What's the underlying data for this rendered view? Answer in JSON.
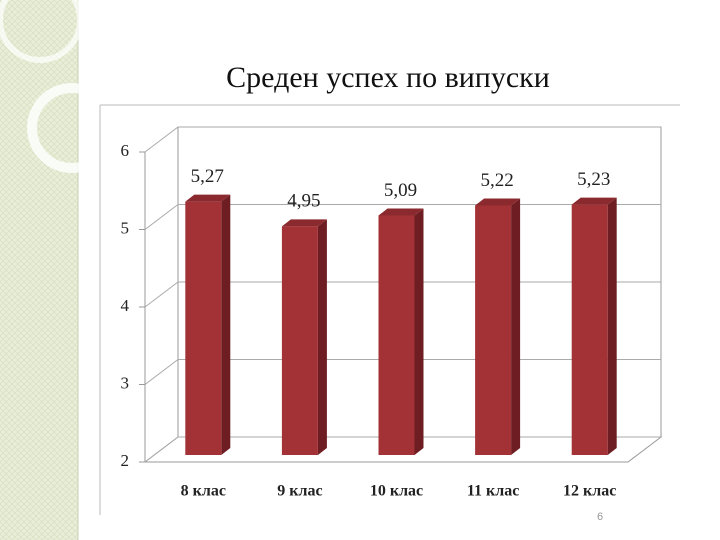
{
  "chart_data": {
    "type": "bar",
    "title": "Среден успех по випуски",
    "categories": [
      "8 клас",
      "9 клас",
      "10 клас",
      "11 клас",
      "12 клас"
    ],
    "values": [
      5.27,
      4.95,
      5.09,
      5.22,
      5.23
    ],
    "value_labels": [
      "5,27",
      "4,95",
      "5,09",
      "5,22",
      "5,23"
    ],
    "color": "#a33236",
    "ylim": [
      2,
      6
    ],
    "yticks": [
      2,
      3,
      4,
      5,
      6
    ],
    "grid": true
  },
  "slide": {
    "page_number": "6"
  }
}
